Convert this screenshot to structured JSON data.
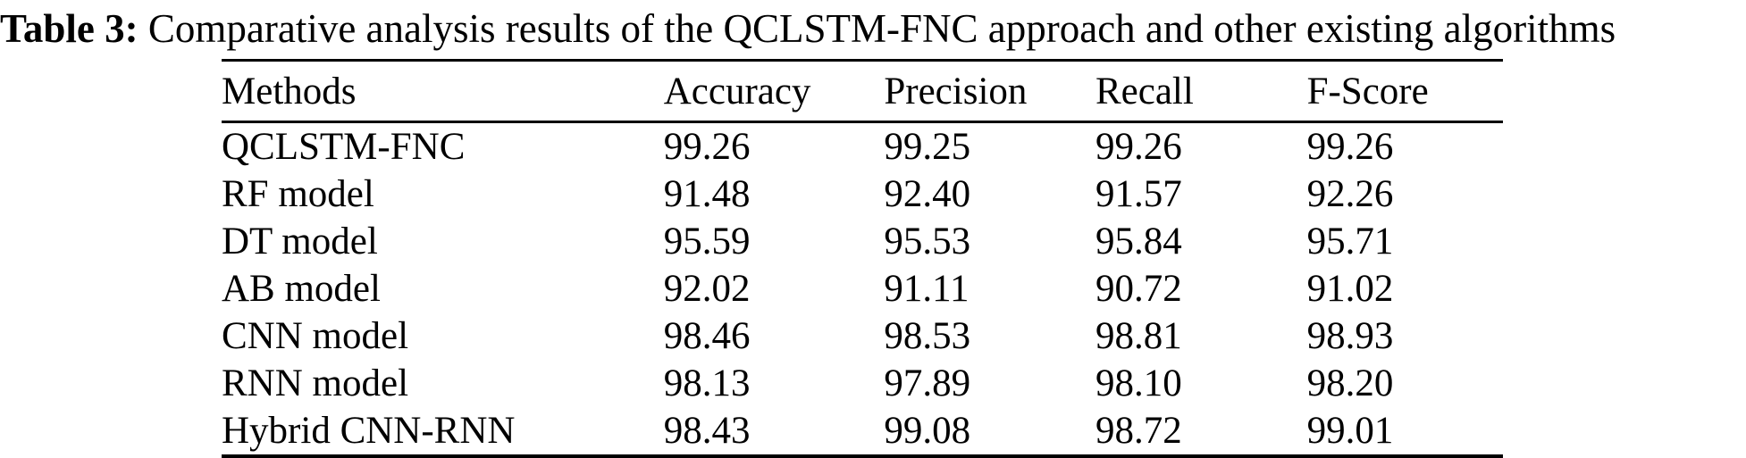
{
  "caption": {
    "label": "Table 3:",
    "text": " Comparative analysis results of the QCLSTM-FNC approach and other existing algorithms"
  },
  "table": {
    "columns": [
      "Methods",
      "Accuracy",
      "Precision",
      "Recall",
      "F-Score"
    ],
    "rows": [
      {
        "method": "QCLSTM-FNC",
        "accuracy": "99.26",
        "precision": "99.25",
        "recall": "99.26",
        "fscore": "99.26"
      },
      {
        "method": "RF model",
        "accuracy": "91.48",
        "precision": "92.40",
        "recall": "91.57",
        "fscore": "92.26"
      },
      {
        "method": "DT model",
        "accuracy": "95.59",
        "precision": "95.53",
        "recall": "95.84",
        "fscore": "95.71"
      },
      {
        "method": "AB model",
        "accuracy": "92.02",
        "precision": "91.11",
        "recall": "90.72",
        "fscore": "91.02"
      },
      {
        "method": "CNN model",
        "accuracy": "98.46",
        "precision": "98.53",
        "recall": "98.81",
        "fscore": "98.93"
      },
      {
        "method": "RNN model",
        "accuracy": "98.13",
        "precision": "97.89",
        "recall": "98.10",
        "fscore": "98.20"
      },
      {
        "method": "Hybrid CNN-RNN",
        "accuracy": "98.43",
        "precision": "99.08",
        "recall": "98.72",
        "fscore": "99.01"
      }
    ]
  }
}
